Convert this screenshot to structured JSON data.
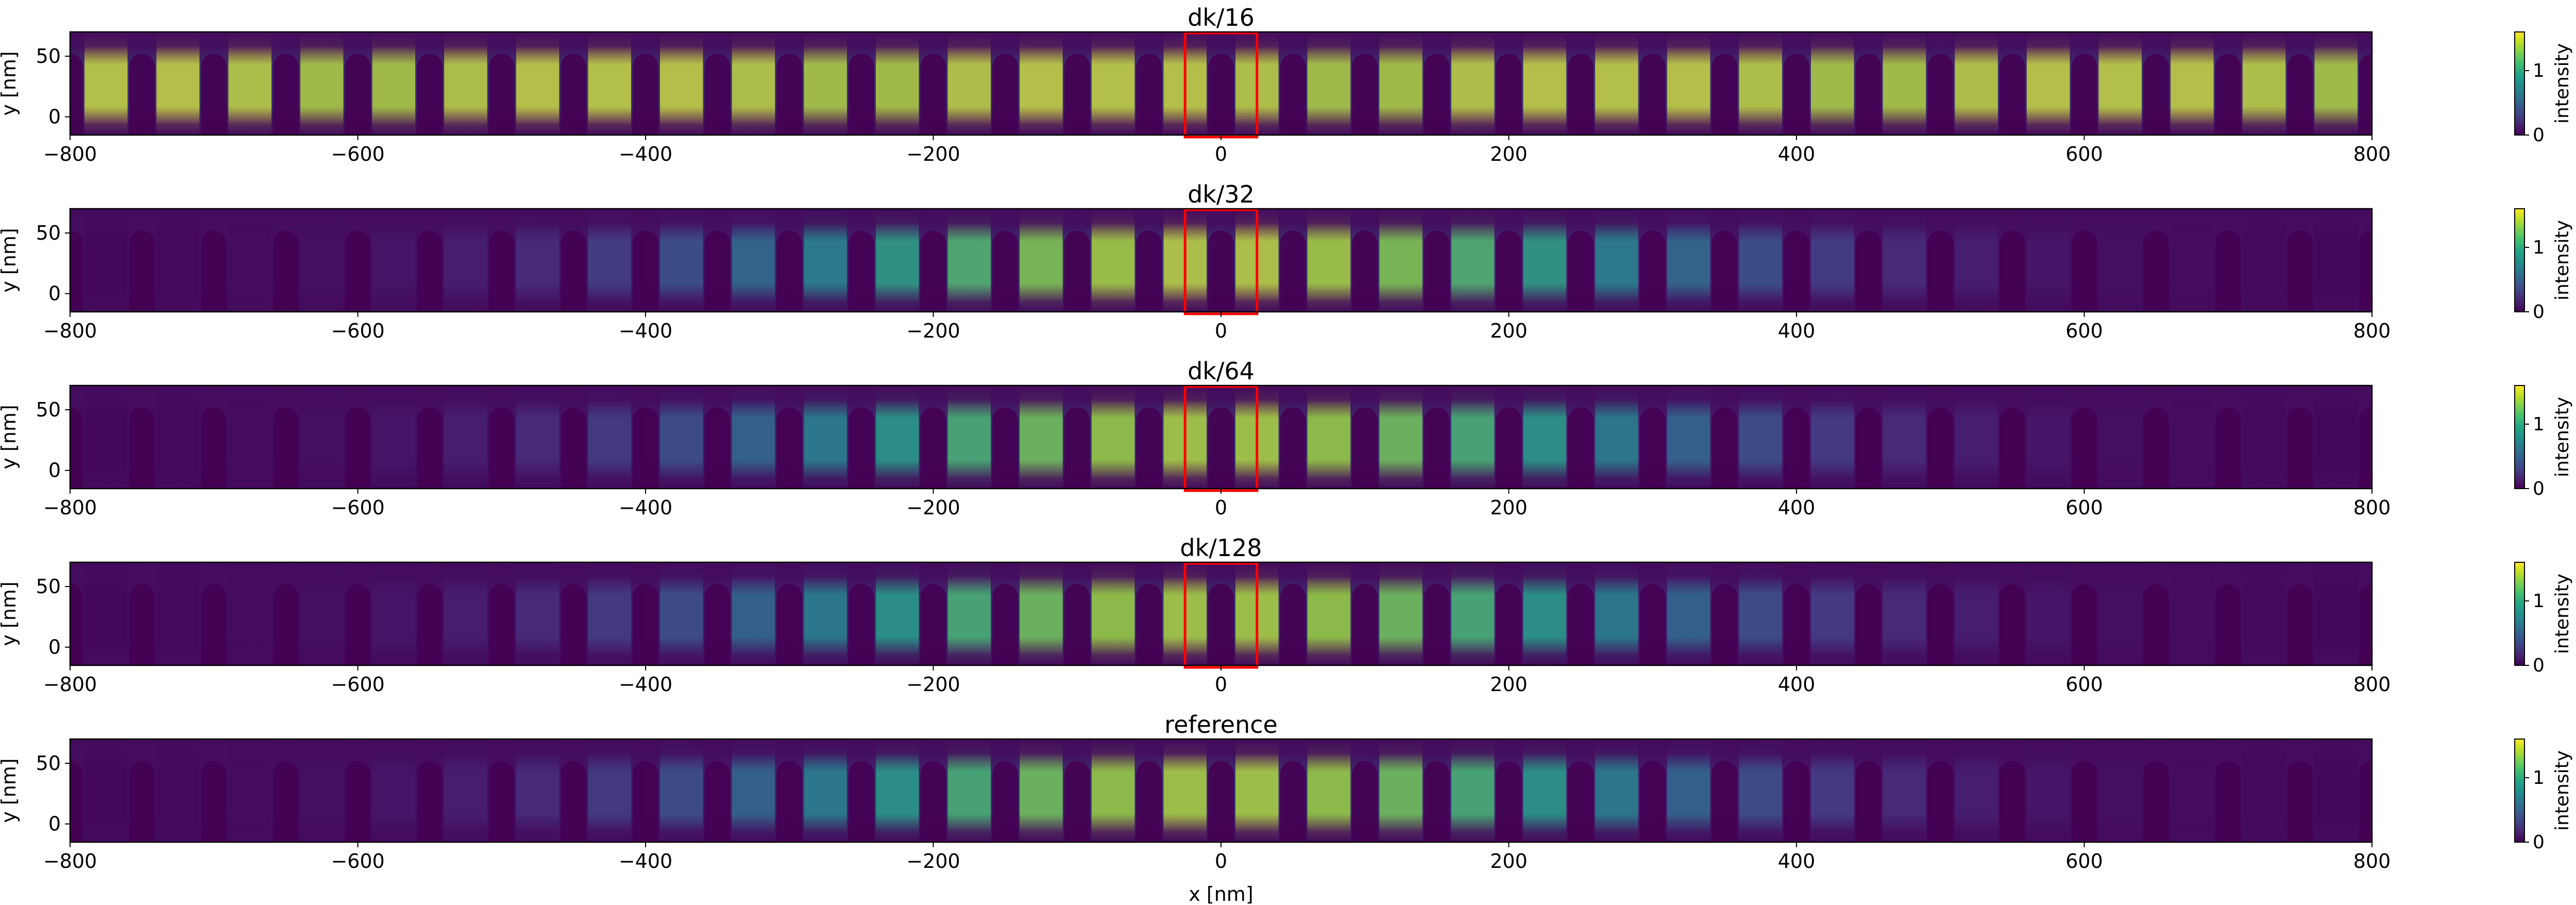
{
  "chart_data": {
    "type": "heatmap",
    "colormap": "viridis",
    "shared_xlabel": "x [nm]",
    "xlim": [
      -800,
      800
    ],
    "ylim": [
      -15,
      70
    ],
    "x_ticks": [
      -800,
      -600,
      -400,
      -200,
      0,
      200,
      400,
      600,
      800
    ],
    "y_ticks": [
      0,
      50
    ],
    "cell_period_nm": 50,
    "num_cells": 32,
    "highlight_box": {
      "color": "#ff0000",
      "x": [
        -25,
        25
      ],
      "y": [
        -15,
        70
      ]
    },
    "panels": [
      {
        "title": "dk/16",
        "ylabel": "y [nm]",
        "cbar_label": "intensity",
        "cbar_ticks": [
          0,
          1
        ],
        "cbar_range": [
          0,
          1.6
        ],
        "envelope": "uniform",
        "peak": 1.6,
        "show_highlight": true
      },
      {
        "title": "dk/32",
        "ylabel": "y [nm]",
        "cbar_label": "intensity",
        "cbar_ticks": [
          0,
          1
        ],
        "cbar_range": [
          0,
          1.6
        ],
        "envelope": "localized",
        "peak": 1.5,
        "show_highlight": true
      },
      {
        "title": "dk/64",
        "ylabel": "y [nm]",
        "cbar_label": "intensity",
        "cbar_ticks": [
          0,
          1
        ],
        "cbar_range": [
          0,
          1.6
        ],
        "envelope": "localized",
        "peak": 1.45,
        "show_highlight": true
      },
      {
        "title": "dk/128",
        "ylabel": "y [nm]",
        "cbar_label": "intensity",
        "cbar_ticks": [
          0,
          1
        ],
        "cbar_range": [
          0,
          1.6
        ],
        "envelope": "localized",
        "peak": 1.45,
        "show_highlight": true
      },
      {
        "title": "reference",
        "ylabel": "y [nm]",
        "cbar_label": "intensity",
        "cbar_ticks": [
          0,
          1
        ],
        "cbar_range": [
          0,
          1.6
        ],
        "envelope": "localized",
        "peak": 1.45,
        "show_highlight": false
      }
    ]
  }
}
